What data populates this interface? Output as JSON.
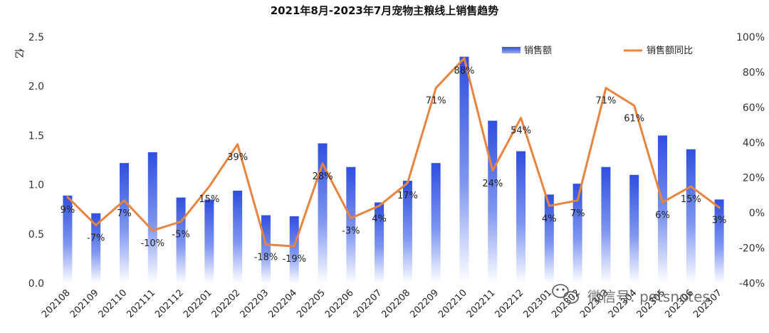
{
  "chart_data": {
    "type": "bar",
    "title": "2021年8月-2023年7月宠物主粮线上销售趋势",
    "y_unit": "亿",
    "categories": [
      "202108",
      "202109",
      "202110",
      "202111",
      "202112",
      "202201",
      "202202",
      "202203",
      "202204",
      "202205",
      "202206",
      "202207",
      "202208",
      "202209",
      "202210",
      "202211",
      "202212",
      "202301",
      "202302",
      "202303",
      "202304",
      "202305",
      "202306",
      "202307"
    ],
    "series": [
      {
        "name": "销售额",
        "type": "bar",
        "axis": "left",
        "values": [
          0.89,
          0.71,
          1.22,
          1.33,
          0.87,
          0.85,
          0.94,
          0.69,
          0.68,
          1.42,
          1.18,
          0.82,
          1.04,
          1.22,
          2.3,
          1.65,
          1.34,
          0.9,
          1.01,
          1.18,
          1.1,
          1.5,
          1.36,
          0.85
        ]
      },
      {
        "name": "销售额同比",
        "type": "line",
        "axis": "right",
        "values": [
          9,
          -7,
          7,
          -10,
          -5,
          15,
          39,
          -18,
          -19,
          28,
          -3,
          4,
          17,
          71,
          88,
          24,
          54,
          4,
          7,
          71,
          61,
          6,
          15,
          3
        ],
        "labels": [
          "9%",
          "-7%",
          "7%",
          "-10%",
          "-5%",
          "15%",
          "39%",
          "-18%",
          "-19%",
          "28%",
          "-3%",
          "4%",
          "17%",
          "71%",
          "88%",
          "24%",
          "54%",
          "4%",
          "7%",
          "71%",
          "61%",
          "6%",
          "15%",
          "3%"
        ]
      }
    ],
    "y_left": {
      "range": [
        0,
        2.5
      ],
      "ticks": [
        "0.0",
        "0.5",
        "1.0",
        "1.5",
        "2.0",
        "2.5"
      ]
    },
    "y_right": {
      "range": [
        -40,
        100
      ],
      "ticks": [
        "-40%",
        "-20%",
        "0%",
        "20%",
        "40%",
        "60%",
        "80%",
        "100%"
      ]
    },
    "legend_position": "top-right",
    "grid": false,
    "colors": {
      "bar_top": "#2F4FE0",
      "bar_bottom": "#FFFFFF",
      "line": "#E8843F"
    }
  },
  "watermark": {
    "text": "微信号: petsnotes"
  }
}
